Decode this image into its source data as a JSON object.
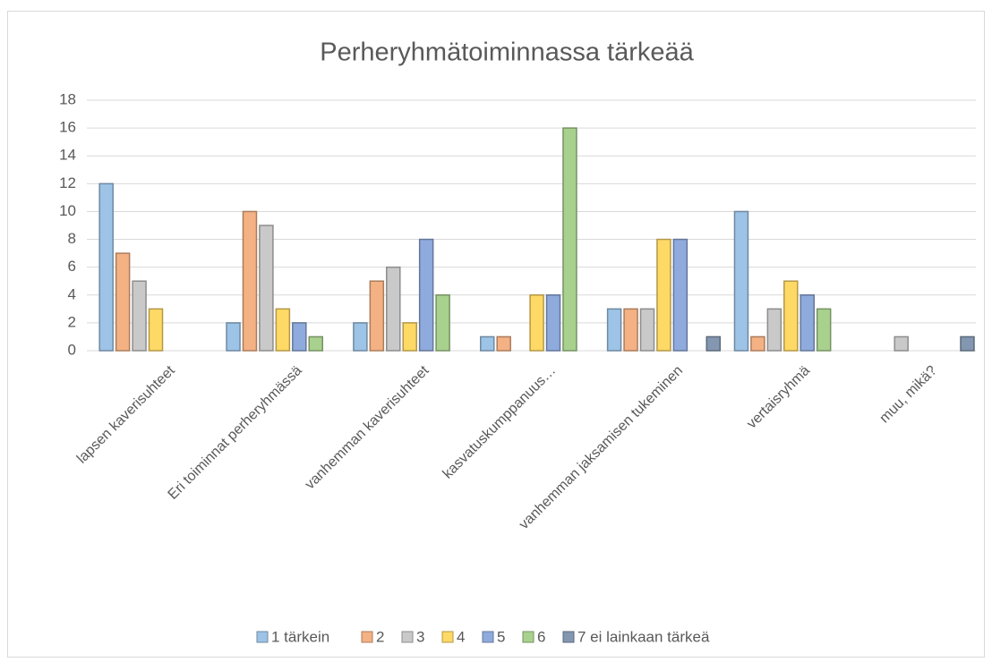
{
  "chart_data": {
    "type": "bar",
    "title": "Perheryhmätoiminnassa tärkeää",
    "categories": [
      "lapsen kaverisuhteet",
      "Eri toiminnat perheryhmässä",
      "vanhemman kaverisuhteet",
      "kasvatuskumppanuus…",
      "vanhemman jaksamisen tukeminen",
      "vertaisryhmä",
      "muu, mikä?"
    ],
    "series": [
      {
        "name": "1 tärkein",
        "color": "#9dc3e6",
        "values": [
          12,
          2,
          2,
          1,
          3,
          10,
          0
        ]
      },
      {
        "name": "2",
        "color": "#f4b183",
        "values": [
          7,
          10,
          5,
          1,
          3,
          1,
          0
        ]
      },
      {
        "name": "3",
        "color": "#c9c9c9",
        "values": [
          5,
          9,
          6,
          0,
          3,
          3,
          1
        ]
      },
      {
        "name": "4",
        "color": "#ffd966",
        "values": [
          3,
          3,
          2,
          4,
          8,
          5,
          0
        ]
      },
      {
        "name": "5",
        "color": "#8faadc",
        "values": [
          0,
          2,
          8,
          4,
          8,
          4,
          0
        ]
      },
      {
        "name": "6",
        "color": "#a9d18e",
        "values": [
          0,
          1,
          4,
          16,
          0,
          3,
          0
        ]
      },
      {
        "name": "7 ei lainkaan tärkeä",
        "color": "#8497b0",
        "values": [
          0,
          0,
          0,
          0,
          1,
          0,
          1
        ]
      }
    ],
    "ylim": [
      0,
      18
    ],
    "yticks": [
      0,
      2,
      4,
      6,
      8,
      10,
      12,
      14,
      16,
      18
    ],
    "grid": true,
    "legend": "bottom"
  }
}
